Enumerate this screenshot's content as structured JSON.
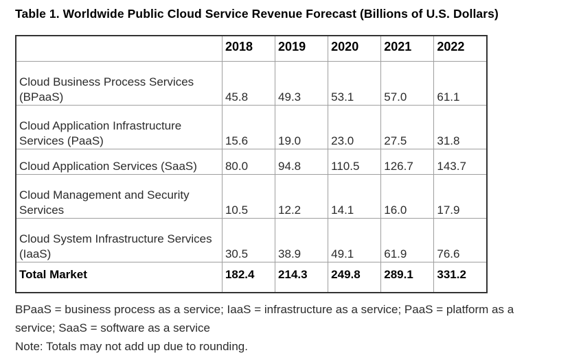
{
  "title": "Table 1. Worldwide Public Cloud Service Revenue Forecast (Billions of U.S. Dollars)",
  "table": {
    "columns": [
      "",
      "2018",
      "2019",
      "2020",
      "2021",
      "2022"
    ],
    "rows": [
      {
        "label": "Cloud Business Process Services (BPaaS)",
        "values": [
          "45.8",
          "49.3",
          "53.1",
          "57.0",
          "61.1"
        ]
      },
      {
        "label": "Cloud Application Infrastructure Services (PaaS)",
        "values": [
          "15.6",
          "19.0",
          "23.0",
          "27.5",
          "31.8"
        ]
      },
      {
        "label": "Cloud Application Services (SaaS)",
        "values": [
          "80.0",
          "94.8",
          "110.5",
          "126.7",
          "143.7"
        ]
      },
      {
        "label": "Cloud Management and Security Services",
        "values": [
          "10.5",
          "12.2",
          "14.1",
          "16.0",
          "17.9"
        ]
      },
      {
        "label": "Cloud System Infrastructure Services (IaaS)",
        "values": [
          "30.5",
          "38.9",
          "49.1",
          "61.9",
          "76.6"
        ]
      },
      {
        "label": "Total Market",
        "values": [
          "182.4",
          "214.3",
          "249.8",
          "289.1",
          "331.2"
        ]
      }
    ]
  },
  "footnotes": {
    "abbreviations": "BPaaS = business process as a service; IaaS = infrastructure as a service; PaaS = platform as a service; SaaS = software as a service",
    "note": "Note: Totals may not add up due to rounding."
  },
  "colors": {
    "text": "#2b2b2b",
    "bold_text": "#000000",
    "inner_border": "#9e9e9e",
    "outer_border": "#333333",
    "background": "#ffffff"
  }
}
